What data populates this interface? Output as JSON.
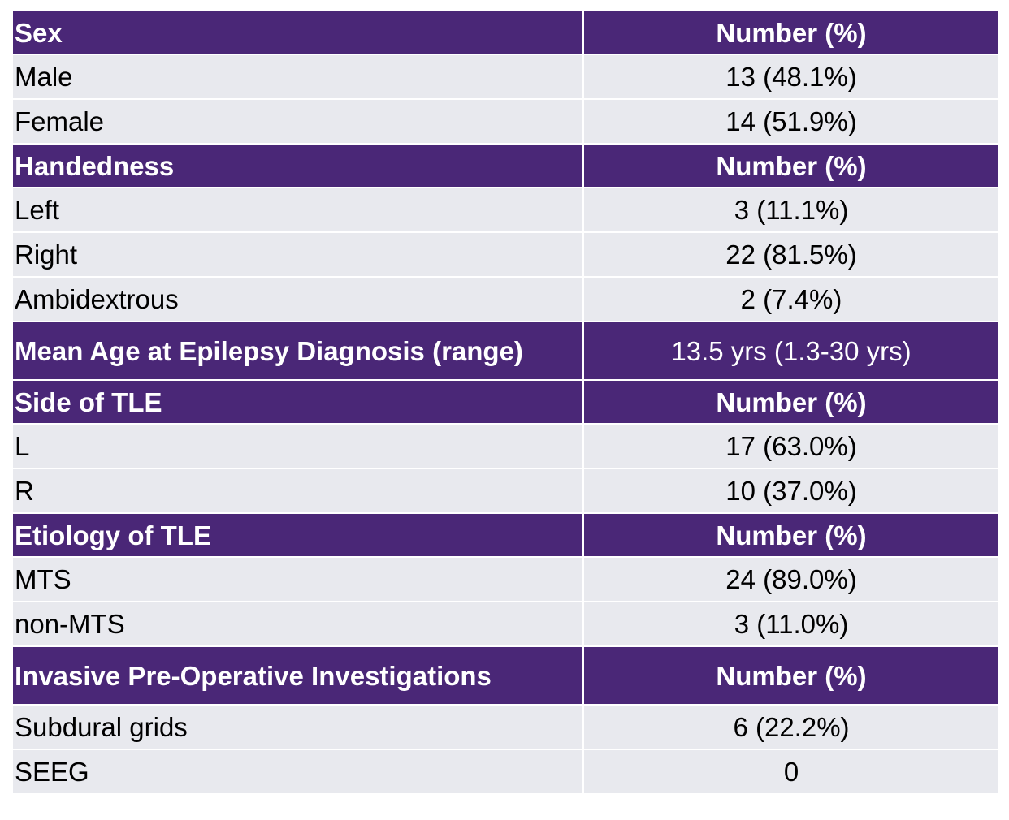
{
  "sections": [
    {
      "header": "Sex",
      "value_header": "Number (%)",
      "rows": [
        {
          "label": "Male",
          "value": "13 (48.1%)"
        },
        {
          "label": "Female",
          "value": "14 (51.9%)"
        }
      ]
    },
    {
      "header": "Handedness",
      "value_header": "Number (%)",
      "rows": [
        {
          "label": "Left",
          "value": "3 (11.1%)"
        },
        {
          "label": "Right",
          "value": "22 (81.5%)"
        },
        {
          "label": "Ambidextrous",
          "value": "2 (7.4%)"
        }
      ]
    },
    {
      "header": "Mean Age at Epilepsy Diagnosis (range)",
      "value_header": "13.5 yrs (1.3-30 yrs)",
      "rows": []
    },
    {
      "header": "Side of TLE",
      "value_header": "Number (%)",
      "rows": [
        {
          "label": "L",
          "value": "17 (63.0%)"
        },
        {
          "label": "R",
          "value": "10 (37.0%)"
        }
      ]
    },
    {
      "header": "Etiology of TLE",
      "value_header": "Number (%)",
      "rows": [
        {
          "label": "MTS",
          "value": "24 (89.0%)"
        },
        {
          "label": "non-MTS",
          "value": "3 (11.0%)"
        }
      ]
    },
    {
      "header": "Invasive Pre-Operative Investigations",
      "value_header": "Number (%)",
      "rows": [
        {
          "label": "Subdural grids",
          "value": "6 (22.2%)"
        },
        {
          "label": "SEEG",
          "value": "0"
        }
      ]
    }
  ],
  "colors": {
    "header_bg": "#4a2777",
    "header_text": "#ffffff",
    "row_bg": "#e8e9ee"
  }
}
